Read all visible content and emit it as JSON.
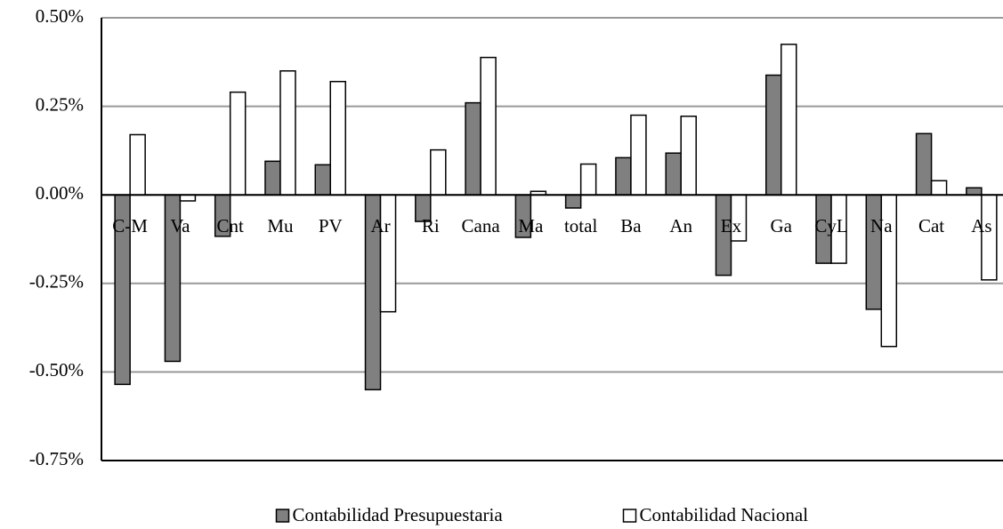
{
  "chart_data": {
    "type": "bar",
    "categories": [
      "C-M",
      "Va",
      "Cnt",
      "Mu",
      "PV",
      "Ar",
      "Ri",
      "Cana",
      "Ma",
      "total",
      "Ba",
      "An",
      "Ex",
      "Ga",
      "CyL",
      "Na",
      "Cat",
      "As"
    ],
    "series": [
      {
        "name": "Contabilidad Presupuestaria",
        "color": "#808080",
        "values": [
          -0.535,
          -0.47,
          -0.117,
          0.095,
          0.085,
          -0.55,
          -0.075,
          0.26,
          -0.12,
          -0.037,
          0.105,
          0.118,
          -0.227,
          0.338,
          -0.193,
          -0.323,
          0.173,
          0.02
        ]
      },
      {
        "name": "Contabilidad Nacional",
        "color": "#ffffff",
        "values": [
          0.17,
          -0.017,
          0.29,
          0.35,
          0.32,
          -0.33,
          0.127,
          0.388,
          0.01,
          0.087,
          0.225,
          0.222,
          -0.13,
          0.425,
          -0.193,
          -0.428,
          0.04,
          -0.24
        ]
      }
    ],
    "ylim": [
      -0.75,
      0.5
    ],
    "yticks": [
      {
        "value": -0.75,
        "label": "-0.75%"
      },
      {
        "value": -0.5,
        "label": "-0.50%"
      },
      {
        "value": -0.25,
        "label": "-0.25%"
      },
      {
        "value": 0,
        "label": "0.00%"
      },
      {
        "value": 0.25,
        "label": "0.25%"
      },
      {
        "value": 0.5,
        "label": "0.50%"
      }
    ],
    "grid": true,
    "legend": "bottom"
  }
}
